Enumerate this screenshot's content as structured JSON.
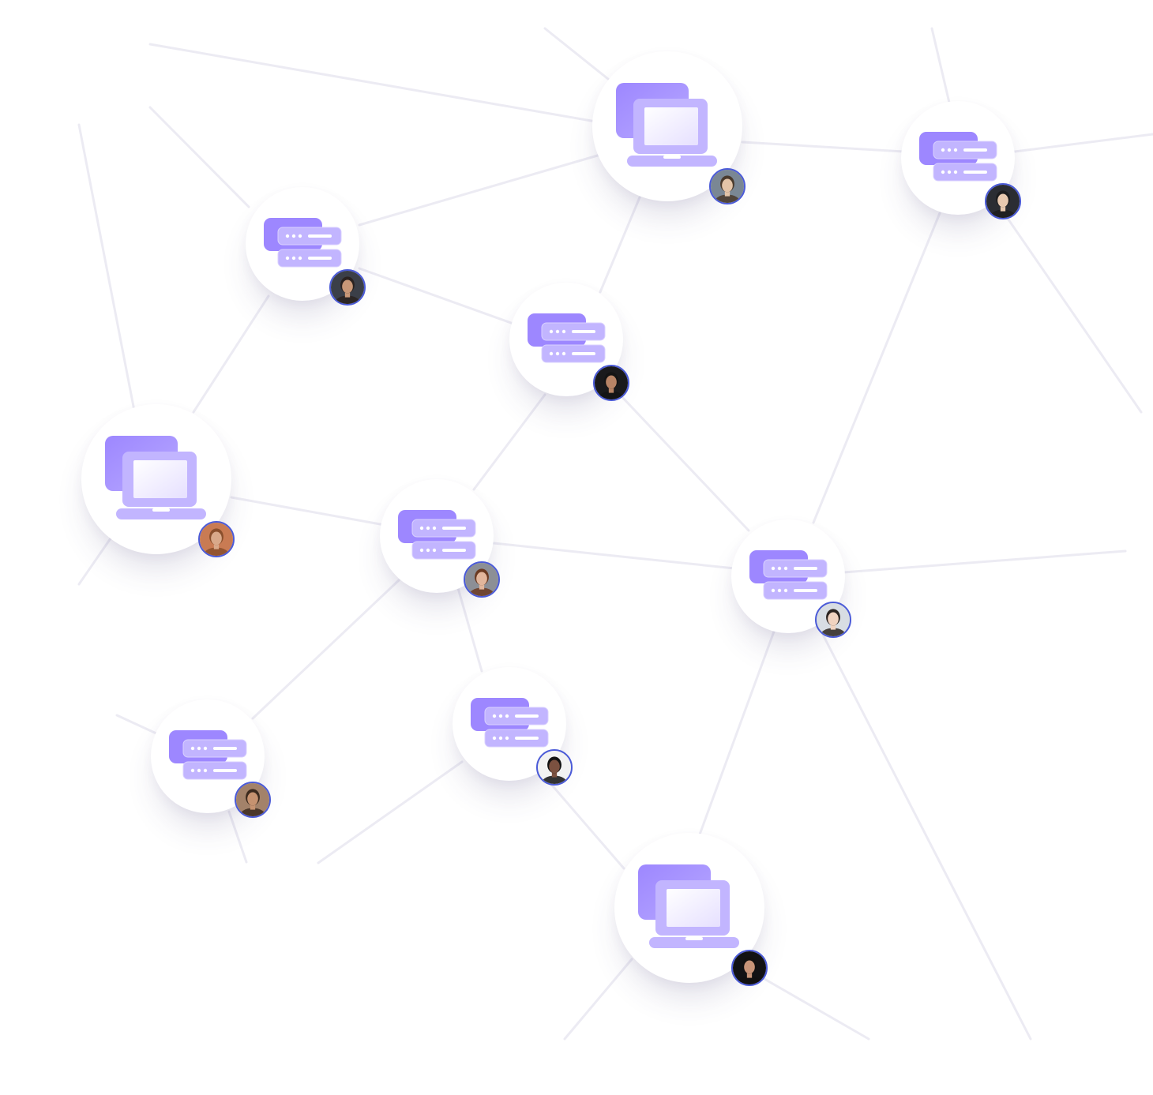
{
  "diagram": {
    "colors": {
      "link": "#ecebf3",
      "node_fill": "#ffffff",
      "icon_primary": "#9d87ff",
      "icon_light": "#c2b5ff",
      "icon_screen": "#e6e0ff",
      "avatar_ring": "#4b5bd8"
    },
    "nodes": [
      {
        "id": "n1",
        "kind": "device",
        "icon": "laptop-stack-icon"
      },
      {
        "id": "n2",
        "kind": "server",
        "icon": "server-stack-icon"
      },
      {
        "id": "n3",
        "kind": "server",
        "icon": "server-stack-icon"
      },
      {
        "id": "n4",
        "kind": "server",
        "icon": "server-stack-icon"
      },
      {
        "id": "n5",
        "kind": "device",
        "icon": "laptop-stack-icon"
      },
      {
        "id": "n6",
        "kind": "server",
        "icon": "server-stack-icon"
      },
      {
        "id": "n7",
        "kind": "server",
        "icon": "server-stack-icon"
      },
      {
        "id": "n8",
        "kind": "server",
        "icon": "server-stack-icon"
      },
      {
        "id": "n9",
        "kind": "server",
        "icon": "server-stack-icon"
      },
      {
        "id": "n10",
        "kind": "server",
        "icon": "server-stack-icon"
      },
      {
        "id": "n11",
        "kind": "device",
        "icon": "laptop-stack-icon"
      }
    ],
    "avatars": [
      {
        "node": "n1",
        "skin": "#e3c4a8",
        "hair": "#4a3a2c",
        "bg": "#7a8794"
      },
      {
        "node": "n2",
        "skin": "#e8c9b0",
        "hair": "#1d1d1f",
        "bg": "#2b2d33"
      },
      {
        "node": "n3",
        "skin": "#c99878",
        "hair": "#2a2220",
        "bg": "#3b3f48"
      },
      {
        "node": "n4",
        "skin": "#b88466",
        "hair": "#141414",
        "bg": "#1a1a1c"
      },
      {
        "node": "n5",
        "skin": "#d9a98a",
        "hair": "#8a4f2c",
        "bg": "#c97b53"
      },
      {
        "node": "n6",
        "skin": "#e2b69c",
        "hair": "#6b3a22",
        "bg": "#8c8f96"
      },
      {
        "node": "n7",
        "skin": "#f1d3c0",
        "hair": "#2c2420",
        "bg": "#d8dde3"
      },
      {
        "node": "n8",
        "skin": "#c69270",
        "hair": "#3c2a1e",
        "bg": "#a3826a"
      },
      {
        "node": "n9",
        "skin": "#7b5140",
        "hair": "#121212",
        "bg": "#f2f2f2"
      },
      {
        "node": "n10",
        "skin": "#e0b8a0",
        "hair": "#1a1614",
        "bg": "#1e1d22"
      },
      {
        "node": "n11",
        "skin": "#c89478",
        "hair": "#121010",
        "bg": "#121214"
      }
    ],
    "links": [
      [
        "n1",
        "n3"
      ],
      [
        "n1",
        "n4"
      ],
      [
        "n1",
        "n2"
      ],
      [
        "n3",
        "n4"
      ],
      [
        "n3",
        "n5"
      ],
      [
        "n4",
        "n6"
      ],
      [
        "n4",
        "n7"
      ],
      [
        "n5",
        "n6"
      ],
      [
        "n6",
        "n7"
      ],
      [
        "n6",
        "n8"
      ],
      [
        "n6",
        "n9"
      ],
      [
        "n9",
        "n11"
      ],
      [
        "n7",
        "n11"
      ],
      [
        "n2",
        "n7"
      ]
    ]
  }
}
